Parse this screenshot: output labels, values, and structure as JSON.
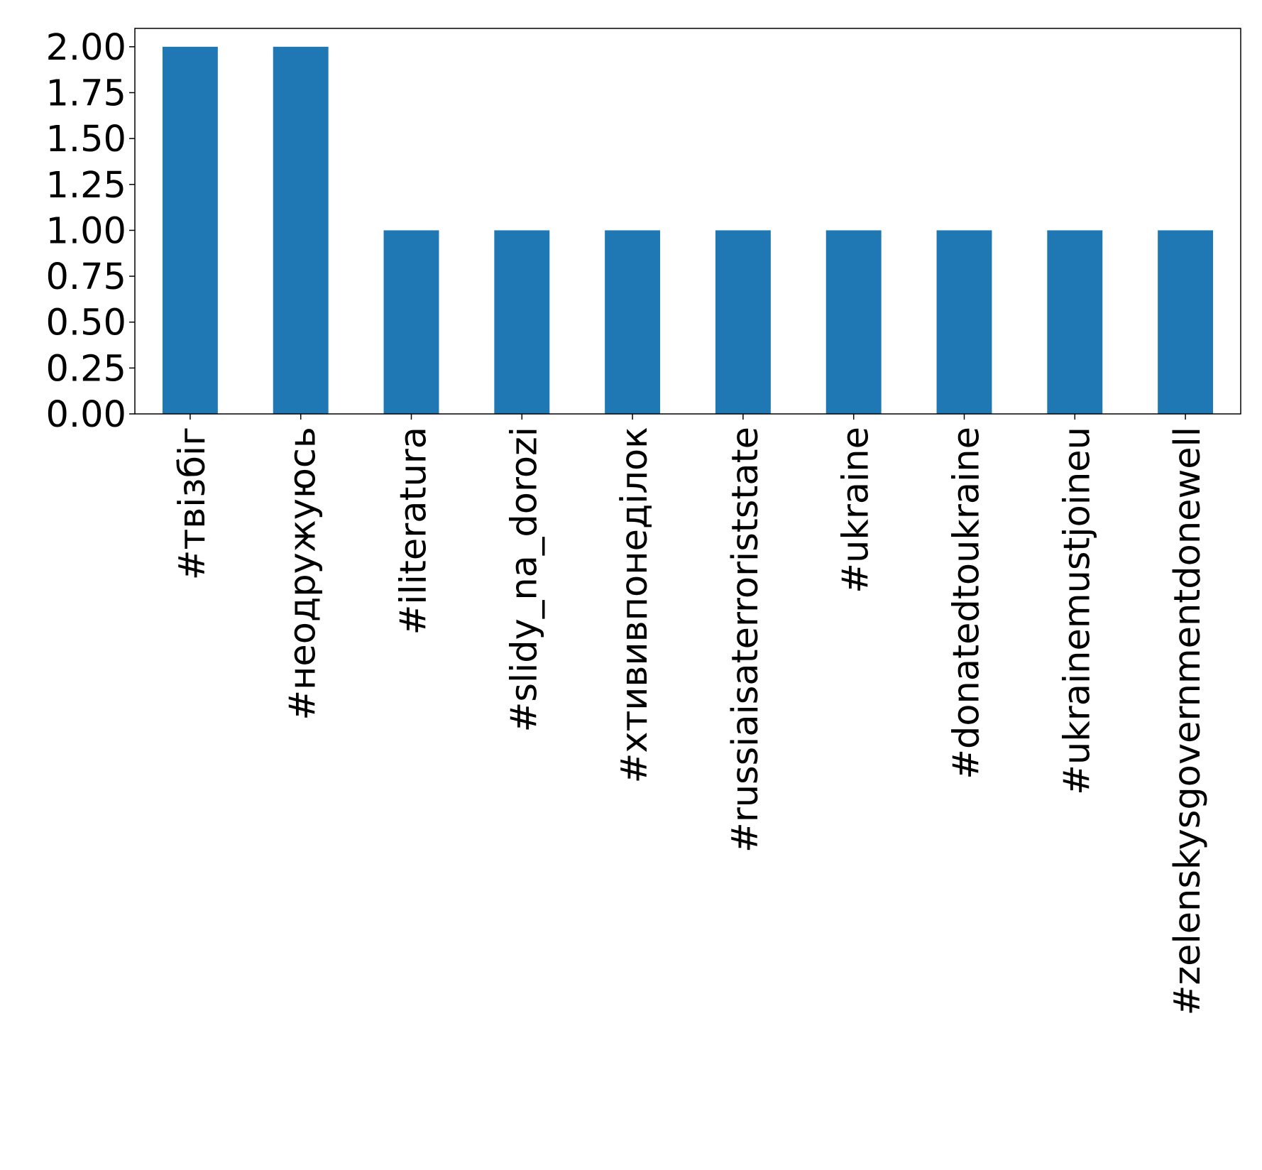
{
  "chart_data": {
    "type": "bar",
    "title": "",
    "xlabel": "",
    "ylabel": "",
    "categories": [
      "#твізбіг",
      "#неодружуюсь",
      "#iliteratura",
      "#slidy_na_dorozi",
      "#хтививпонеділок",
      "#russiaisaterroriststate",
      "#ukraine",
      "#donatedtoukraine",
      "#ukrainemustjoineu",
      "#zelenskysgovernmentdonewell"
    ],
    "values": [
      2,
      2,
      1,
      1,
      1,
      1,
      1,
      1,
      1,
      1
    ],
    "ylim": [
      0,
      2.1
    ],
    "yticks": [
      "0.00",
      "0.25",
      "0.50",
      "0.75",
      "1.00",
      "1.25",
      "1.50",
      "1.75",
      "2.00"
    ],
    "grid": false,
    "legend": "none",
    "colors": {
      "bar": "#1f77b4",
      "axis": "#000000",
      "background": "#ffffff"
    }
  }
}
